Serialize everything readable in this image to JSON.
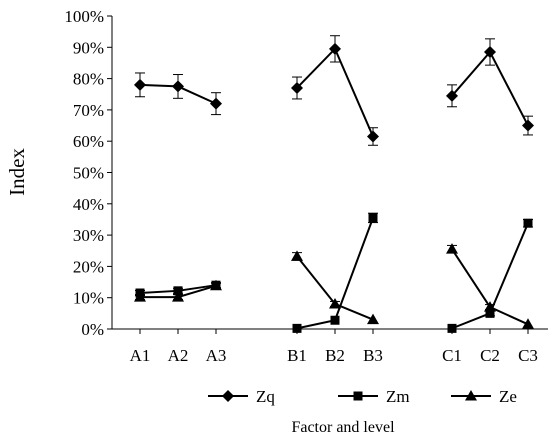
{
  "chart_data": {
    "type": "line",
    "xlabel": "Factor and level",
    "ylabel": "Index",
    "ylim": [
      0,
      100
    ],
    "y_tick_format": "percent",
    "y_ticks": [
      "0%",
      "10%",
      "20%",
      "30%",
      "40%",
      "50%",
      "60%",
      "70%",
      "80%",
      "90%",
      "100%"
    ],
    "groups": [
      {
        "categories": [
          "A1",
          "A2",
          "A3"
        ]
      },
      {
        "categories": [
          "B1",
          "B2",
          "B3"
        ]
      },
      {
        "categories": [
          "C1",
          "C2",
          "C3"
        ]
      }
    ],
    "series": [
      {
        "name": "Zq",
        "marker": "diamond",
        "values": [
          [
            78,
            77.5,
            72
          ],
          [
            77,
            89.5,
            61.5
          ],
          [
            74.5,
            88.5,
            65
          ]
        ],
        "errors": [
          [
            3.8,
            3.8,
            3.5
          ],
          [
            3.5,
            4.2,
            2.8
          ],
          [
            3.5,
            4.2,
            3
          ]
        ]
      },
      {
        "name": "Zm",
        "marker": "square",
        "values": [
          [
            11.5,
            12.2,
            14
          ],
          [
            0.2,
            2.8,
            35.5
          ],
          [
            0.2,
            5,
            33.8
          ]
        ],
        "errors": [
          [
            0.8,
            0.8,
            0.8
          ],
          [
            0.2,
            0.5,
            1.5
          ],
          [
            0.2,
            0.8,
            1.2
          ]
        ]
      },
      {
        "name": "Ze",
        "marker": "triangle",
        "values": [
          [
            10.2,
            10.2,
            13.8
          ],
          [
            23.2,
            8,
            3
          ],
          [
            25.5,
            7,
            1.5
          ]
        ],
        "errors": [
          [
            0.8,
            0.8,
            0.8
          ],
          [
            1.2,
            0.8,
            0.5
          ],
          [
            1.2,
            0.8,
            0.3
          ]
        ]
      }
    ],
    "colors": {
      "line": "#000000",
      "background": "#ffffff"
    },
    "legend_position": "bottom"
  }
}
